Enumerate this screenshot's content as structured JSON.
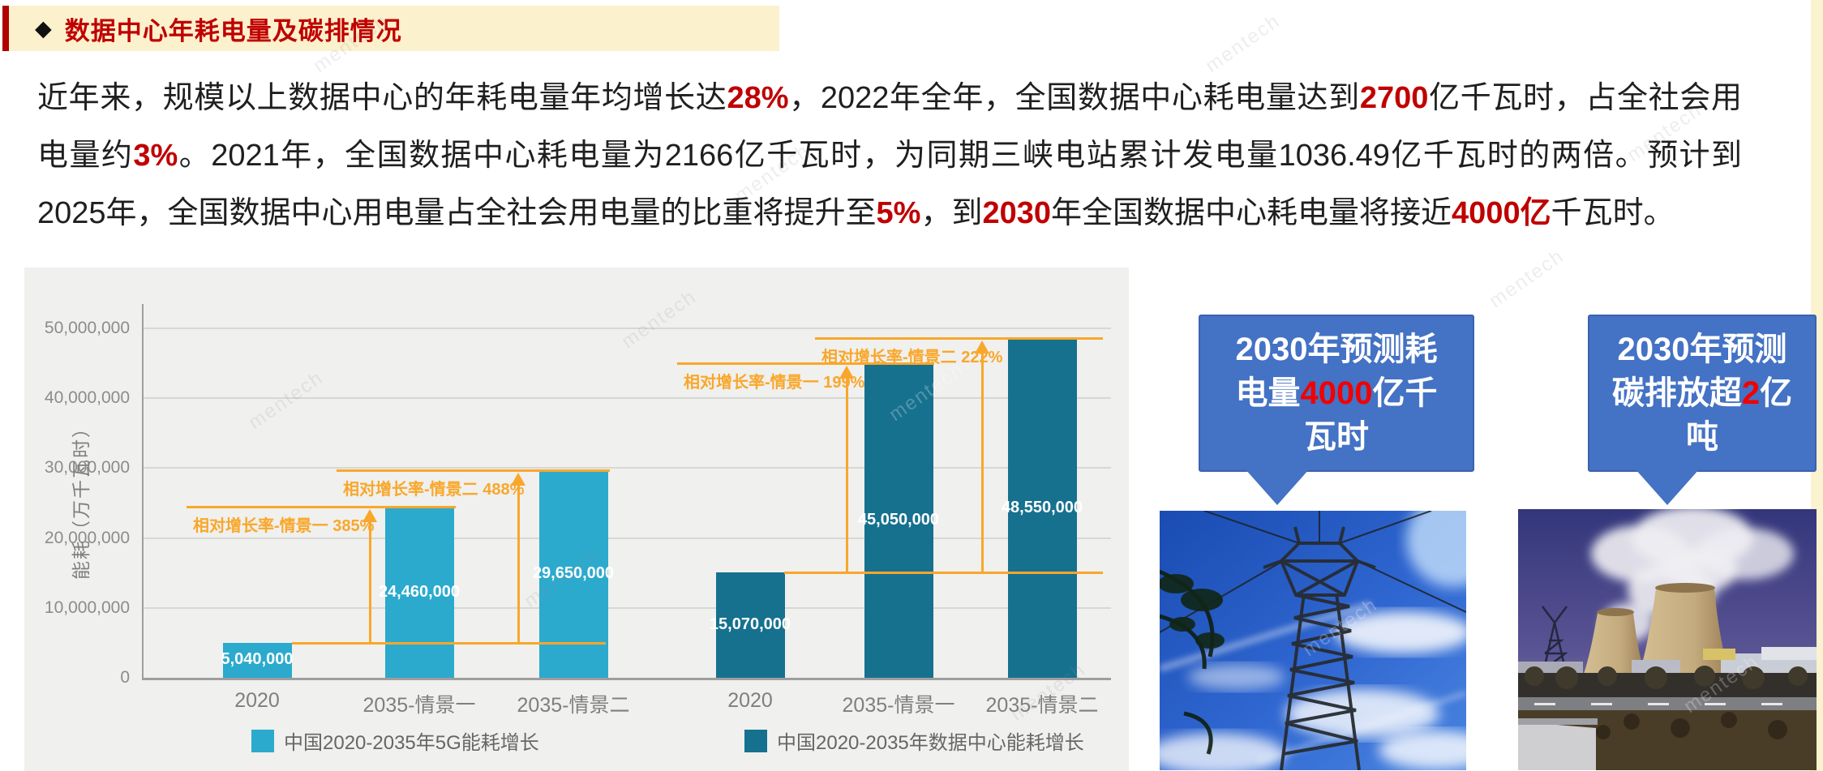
{
  "watermark": "mentech",
  "header": {
    "bullet": "◆",
    "title": "数据中心年耗电量及碳排情况"
  },
  "paragraph": {
    "lines": [
      {
        "justify": true,
        "segments": [
          {
            "t": "近年来，规模以上数据中心的年耗电量年均增长达"
          },
          {
            "t": "28%",
            "red": true
          },
          {
            "t": "，2022年全年，全国数据中心耗电量达到"
          },
          {
            "t": "2700",
            "red": true
          },
          {
            "t": "亿千瓦时，占全社会用"
          }
        ]
      },
      {
        "justify": true,
        "segments": [
          {
            "t": "电量约"
          },
          {
            "t": "3%",
            "red": true
          },
          {
            "t": "。2021年，全国数据中心耗电量为2166亿千瓦时，为同期三峡电站累计发电量1036.49亿千瓦时的两倍。预计到"
          }
        ]
      },
      {
        "justify": false,
        "segments": [
          {
            "t": "2025年，全国数据中心用电量占全社会用电量的比重将提升至"
          },
          {
            "t": "5%",
            "red": true
          },
          {
            "t": "，到"
          },
          {
            "t": "2030",
            "red": true
          },
          {
            "t": "年全国数据中心耗电量将接近"
          },
          {
            "t": "4000亿",
            "red": true
          },
          {
            "t": "千瓦时。"
          }
        ]
      }
    ]
  },
  "chart_data": {
    "type": "bar",
    "title": "",
    "ylabel": "能耗（万千瓦时）",
    "xlabel": "",
    "ylim": [
      0,
      50000000
    ],
    "grid": true,
    "legend_position": "bottom",
    "yticks": [
      {
        "value": 0,
        "label": "0"
      },
      {
        "value": 10000000,
        "label": "10,000,000"
      },
      {
        "value": 20000000,
        "label": "20,000,000"
      },
      {
        "value": 30000000,
        "label": "30,000,000"
      },
      {
        "value": 40000000,
        "label": "40,000,000"
      },
      {
        "value": 50000000,
        "label": "50,000,000"
      }
    ],
    "categories": [
      "2020",
      "2035-情景一",
      "2035-情景二"
    ],
    "series": [
      {
        "name": "中国2020-2035年5G能耗增长",
        "color": "#2BAACE",
        "values": [
          5040000,
          24460000,
          29650000
        ],
        "labels": [
          "5,040,000",
          "24,460,000",
          "29,650,000"
        ]
      },
      {
        "name": "中国2020-2035年数据中心能耗增长",
        "color": "#16718F",
        "values": [
          15070000,
          45050000,
          48550000
        ],
        "labels": [
          "15,070,000",
          "45,050,000",
          "48,550,000"
        ]
      }
    ],
    "annotations": [
      {
        "label": "相对增长率-情景一",
        "value": "385%"
      },
      {
        "label": "相对增长率-情景二",
        "value": "488%"
      },
      {
        "label": "相对增长率-情景一",
        "value": "199%"
      },
      {
        "label": "相对增长率-情景二",
        "value": "222%"
      }
    ]
  },
  "callouts": [
    {
      "lines": [
        [
          {
            "t": "2030年预测耗"
          }
        ],
        [
          {
            "t": "电量"
          },
          {
            "t": "4000",
            "red": true
          },
          {
            "t": "亿千"
          }
        ],
        [
          {
            "t": "瓦时"
          }
        ]
      ]
    },
    {
      "lines": [
        [
          {
            "t": "2030年预测"
          }
        ],
        [
          {
            "t": "碳排放超"
          },
          {
            "t": "2",
            "red": true
          },
          {
            "t": "亿"
          }
        ],
        [
          {
            "t": "吨"
          }
        ]
      ]
    }
  ],
  "images": {
    "left": "transmission-tower-blue-sky",
    "right": "power-plant-cooling-towers"
  }
}
